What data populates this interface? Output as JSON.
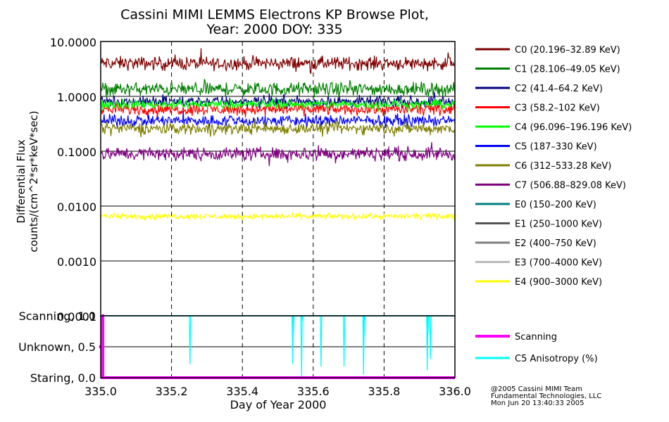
{
  "title_line1": "Cassini MIMI LEMMS Electrons KP Browse Plot,",
  "title_line2": "Year: 2000 DOY: 335",
  "credit": [
    "@2005 Cassini MIMI Team",
    "Fundamental Technologies, LLC",
    "Mon Jun 20 13:40:33 2005"
  ],
  "colors": {
    "C0": "#7f0000",
    "C1": "#007f00",
    "C2": "#00007f",
    "C3": "#ff0000",
    "C4": "#00ff00",
    "C5": "#0000ff",
    "C6": "#7f7f00",
    "C7": "#7f007f",
    "E0": "#007f7f",
    "E1": "#555555",
    "E2": "#7f7f7f",
    "E3": "#bbbbbb",
    "E4": "#ffff00",
    "scanning": "#ff00ff",
    "anisotropy": "#00ffff"
  },
  "chart_data": [
    {
      "type": "line",
      "ylabel_line1": "Differential Flux",
      "ylabel_line2": "counts/(cm^2*sr*keV*sec)",
      "y_scale": "log",
      "ylim": [
        0.0001,
        10.0
      ],
      "xlim": [
        335.0,
        336.0
      ],
      "y_ticks": [
        "10.0000",
        "1.0000",
        "0.1000",
        "0.0100",
        "0.0010",
        "0.0001"
      ],
      "y_tick_values": [
        10,
        1,
        0.1,
        0.01,
        0.001,
        0.0001
      ],
      "grid": true,
      "legend_position": "right",
      "series": [
        {
          "key": "C0",
          "name": "C0 (20.196–32.89 KeV)",
          "level": 4.0,
          "noise": 0.06
        },
        {
          "key": "C1",
          "name": "C1 (28.106–49.05 KeV)",
          "level": 1.35,
          "noise": 0.06
        },
        {
          "key": "C2",
          "name": "C2 (41.4–64.2 KeV)",
          "level": 0.8,
          "noise": 0.05
        },
        {
          "key": "C3",
          "name": "C3 (58.2–102 KeV)",
          "level": 0.58,
          "noise": 0.05
        },
        {
          "key": "C4",
          "name": "C4 (96.096–196.196 KeV)",
          "level": 0.72,
          "noise": 0.04
        },
        {
          "key": "C5",
          "name": "C5 (187–330 KeV)",
          "level": 0.36,
          "noise": 0.05
        },
        {
          "key": "C6",
          "name": "C6 (312–533.28 KeV)",
          "level": 0.26,
          "noise": 0.05
        },
        {
          "key": "C7",
          "name": "C7 (506.88–829.08 KeV)",
          "level": 0.09,
          "noise": 0.06
        },
        {
          "key": "E0",
          "name": "E0 (150–200 KeV)",
          "level": null
        },
        {
          "key": "E1",
          "name": "E1 (250–1000 KeV)",
          "level": null
        },
        {
          "key": "E2",
          "name": "E2 (400–750 KeV)",
          "level": null
        },
        {
          "key": "E3",
          "name": "E3 (700–4000 KeV)",
          "level": null
        },
        {
          "key": "E4",
          "name": "E4 (900–3000 KeV)",
          "level": 0.0065,
          "noise": 0.025
        }
      ]
    },
    {
      "type": "line",
      "xlabel": "Day of Year 2000",
      "xlim": [
        335.0,
        336.0
      ],
      "x_ticks": [
        "335.0",
        "335.2",
        "335.4",
        "335.6",
        "335.8",
        "336.0"
      ],
      "x_tick_values": [
        335.0,
        335.2,
        335.4,
        335.6,
        335.8,
        336.0
      ],
      "ylim": [
        0.0,
        1.0
      ],
      "y_ticks": [
        "Scanning, 1.0",
        "Unknown, 0.5",
        "Staring, 0.0"
      ],
      "y_tick_values": [
        1.0,
        0.5,
        0.0
      ],
      "grid": true,
      "legend_position": "right",
      "series": [
        {
          "key": "scanning",
          "name": "Scanning",
          "points": [
            [
              335.0,
              0.0
            ],
            [
              335.004,
              0.0
            ],
            [
              335.004,
              1.0
            ],
            [
              335.006,
              1.0
            ],
            [
              335.006,
              0.0
            ],
            [
              336.0,
              0.0
            ]
          ]
        },
        {
          "key": "anisotropy",
          "name": "C5 Anisotropy (%)",
          "baseline": 1.0,
          "dips": [
            [
              335.006,
              0.05
            ],
            [
              335.252,
              0.22
            ],
            [
              335.542,
              0.22
            ],
            [
              335.544,
              0.72
            ],
            [
              335.567,
              0.0
            ],
            [
              335.569,
              0.9
            ],
            [
              335.622,
              0.18
            ],
            [
              335.687,
              0.18
            ],
            [
              335.742,
              0.05
            ],
            [
              335.744,
              0.68
            ],
            [
              335.922,
              0.12
            ],
            [
              335.924,
              0.7
            ],
            [
              335.931,
              0.3
            ]
          ]
        }
      ]
    }
  ]
}
